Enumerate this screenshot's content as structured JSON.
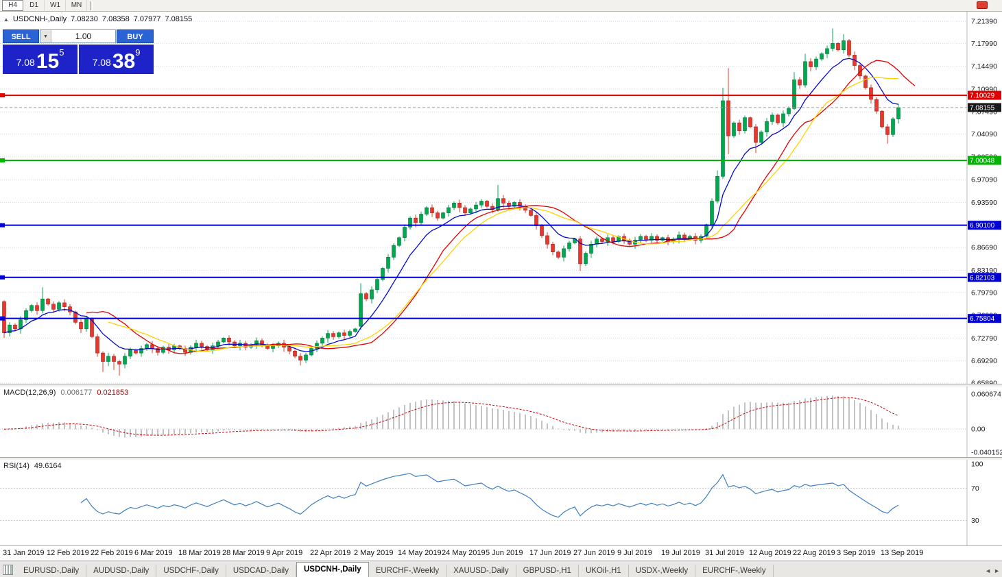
{
  "toolbar": {
    "timeframes": [
      "H4",
      "D1",
      "W1",
      "MN"
    ],
    "active": "H4"
  },
  "chart_header": {
    "collapse_arrow": "▲",
    "symbol": "USDCNH-,Daily",
    "open": "7.08230",
    "high": "7.08358",
    "low": "7.07977",
    "close": "7.08155"
  },
  "trade_panel": {
    "sell_label": "SELL",
    "buy_label": "BUY",
    "volume": "1.00",
    "dropdown_icon": "▼",
    "sell_price": {
      "small": "7.08",
      "big": "15",
      "sup": "5"
    },
    "buy_price": {
      "small": "7.08",
      "big": "38",
      "sup": "9"
    }
  },
  "levels": [
    {
      "label": "7.10029",
      "value": 7.10029,
      "color": "#e00000",
      "type": "resistance"
    },
    {
      "label": "7.08155",
      "value": 7.08155,
      "color": "#1a1a1a",
      "type": "bid"
    },
    {
      "label": "7.00048",
      "value": 7.00048,
      "color": "#00b400",
      "type": "support"
    },
    {
      "label": "6.90100",
      "value": 6.901,
      "color": "#0000d0",
      "type": "support"
    },
    {
      "label": "6.82103",
      "value": 6.82103,
      "color": "#0000d0",
      "type": "support"
    },
    {
      "label": "6.75804",
      "value": 6.75804,
      "color": "#0000d0",
      "type": "support"
    }
  ],
  "price_axis": [
    "7.21390",
    "7.17990",
    "7.14490",
    "7.10990",
    "7.07490",
    "7.04090",
    "7.00590",
    "6.97090",
    "6.93590",
    "6.90090",
    "6.86690",
    "6.83190",
    "6.79790",
    "6.76290",
    "6.72790",
    "6.69290",
    "6.65890"
  ],
  "macd_panel": {
    "label": "MACD(12,26,9)",
    "main_value": "0.006177",
    "signal_value": "0.021853",
    "axis": [
      "0.060674",
      "0.00",
      "-0.040152"
    ]
  },
  "rsi_panel": {
    "label": "RSI(14)",
    "value": "49.6164",
    "axis": [
      "100",
      "70",
      "30"
    ]
  },
  "date_axis": {
    "labels": [
      "31 Jan 2019",
      "12 Feb 2019",
      "22 Feb 2019",
      "6 Mar 2019",
      "18 Mar 2019",
      "28 Mar 2019",
      "9 Apr 2019",
      "22 Apr 2019",
      "2 May 2019",
      "14 May 2019",
      "24 May 2019",
      "5 Jun 2019",
      "17 Jun 2019",
      "27 Jun 2019",
      "9 Jul 2019",
      "19 Jul 2019",
      "31 Jul 2019",
      "12 Aug 2019",
      "22 Aug 2019",
      "3 Sep 2019",
      "13 Sep 2019"
    ]
  },
  "tabs": {
    "items": [
      "EURUSD-,Daily",
      "AUDUSD-,Daily",
      "USDCHF-,Daily",
      "USDCAD-,Daily",
      "USDCNH-,Daily",
      "EURCHF-,Weekly",
      "XAUUSD-,Daily",
      "GBPUSD-,H1",
      "UKOil-,H1",
      "USDX-,Weekly",
      "EURCHF-,Weekly"
    ],
    "active_index": 4,
    "scroll_left": "◄",
    "scroll_right": "►"
  },
  "chart_data": {
    "type": "candlestick",
    "symbol": "USDCNH",
    "timeframe": "Daily",
    "ylim": [
      6.6589,
      7.2139
    ],
    "bars_start_date": "31 Jan 2019",
    "x_label_every_n_bars": 8,
    "first_open": 6.784,
    "closes": [
      6.736,
      6.748,
      6.742,
      6.756,
      6.77,
      6.778,
      6.77,
      6.788,
      6.78,
      6.772,
      6.782,
      6.776,
      6.768,
      6.752,
      6.742,
      6.758,
      6.73,
      6.705,
      6.692,
      6.7,
      6.692,
      6.688,
      6.7,
      6.71,
      6.705,
      6.712,
      6.718,
      6.712,
      6.706,
      6.714,
      6.71,
      6.716,
      6.712,
      6.706,
      6.714,
      6.72,
      6.715,
      6.71,
      6.716,
      6.722,
      6.728,
      6.722,
      6.716,
      6.72,
      6.714,
      6.718,
      6.724,
      6.718,
      6.712,
      6.716,
      6.72,
      6.714,
      6.708,
      6.7,
      6.694,
      6.702,
      6.712,
      6.72,
      6.728,
      6.735,
      6.73,
      6.736,
      6.732,
      6.738,
      6.742,
      6.796,
      6.788,
      6.802,
      6.818,
      6.835,
      6.852,
      6.87,
      6.882,
      6.898,
      6.912,
      6.905,
      6.918,
      6.928,
      6.92,
      6.912,
      6.92,
      6.928,
      6.935,
      6.928,
      6.92,
      6.926,
      6.932,
      6.938,
      6.93,
      6.925,
      6.942,
      6.935,
      6.93,
      6.936,
      6.93,
      6.924,
      6.916,
      6.9,
      6.885,
      6.872,
      6.86,
      6.852,
      6.865,
      6.874,
      6.88,
      6.842,
      6.858,
      6.872,
      6.88,
      6.876,
      6.882,
      6.876,
      6.884,
      6.878,
      6.872,
      6.878,
      6.884,
      6.878,
      6.884,
      6.878,
      6.882,
      6.876,
      6.88,
      6.886,
      6.88,
      6.884,
      6.878,
      6.884,
      6.902,
      6.938,
      6.976,
      7.092,
      7.038,
      7.058,
      7.046,
      7.066,
      7.052,
      7.028,
      7.044,
      7.06,
      7.07,
      7.058,
      7.072,
      7.08,
      7.124,
      7.116,
      7.152,
      7.144,
      7.156,
      7.164,
      7.172,
      7.18,
      7.17,
      7.184,
      7.162,
      7.146,
      7.13,
      7.112,
      7.094,
      7.076,
      7.052,
      7.04,
      7.064,
      7.0816
    ],
    "overrides": {
      "0": {
        "o": 6.784,
        "l": 6.728
      },
      "7": {
        "h": 6.806
      },
      "18": {
        "l": 6.676
      },
      "20": {
        "l": 6.679
      },
      "21": {
        "l": 6.67
      },
      "54": {
        "l": 6.686
      },
      "65": {
        "o": 6.746,
        "h": 6.812
      },
      "90": {
        "h": 6.963
      },
      "105": {
        "l": 6.831
      },
      "130": {
        "h": 6.985
      },
      "131": {
        "h": 7.112,
        "l": 6.972
      },
      "132": {
        "h": 7.142,
        "l": 7.01
      },
      "137": {
        "l": 7.012
      },
      "144": {
        "h": 7.136
      },
      "146": {
        "h": 7.164
      },
      "151": {
        "h": 7.203
      },
      "153": {
        "h": 7.194
      },
      "161": {
        "l": 7.026
      }
    },
    "colors": {
      "up": "#00a94f",
      "down": "#e8372c",
      "up_border": "#00753a",
      "down_border": "#a32017",
      "macd_histogram": "#a8a8a8",
      "macd_signal": "#cc0000",
      "rsi_line": "#3c7ebf"
    },
    "moving_averages": [
      {
        "name": "fast-ma",
        "method": "ema",
        "period": 9,
        "shift": 0,
        "color": "#0008cf"
      },
      {
        "name": "mid-ma",
        "method": "sma",
        "period": 13,
        "shift": 3,
        "color": "#e00000"
      },
      {
        "name": "slow-ma",
        "method": "sma",
        "period": 20,
        "shift": 0,
        "color": "#ffd200"
      }
    ],
    "macd": {
      "fast": 12,
      "slow": 26,
      "signal": 9,
      "ylim": [
        -0.040152,
        0.060674
      ]
    },
    "rsi": {
      "period": 14,
      "levels": [
        70,
        30
      ],
      "ylim": [
        0,
        100
      ]
    }
  }
}
